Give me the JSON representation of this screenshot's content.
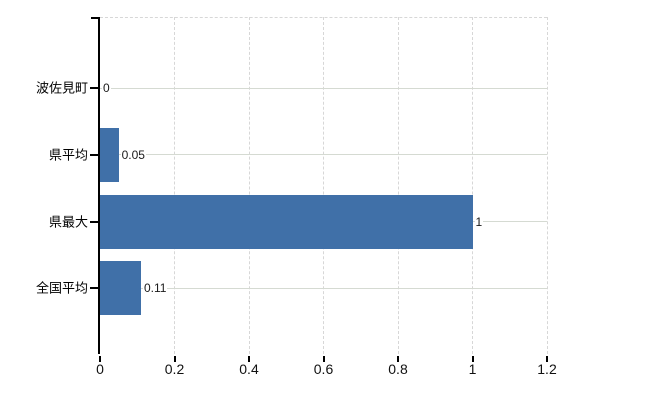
{
  "chart_data": {
    "type": "bar",
    "orientation": "horizontal",
    "title": "",
    "xlabel": "",
    "ylabel": "",
    "categories": [
      "波佐見町",
      "県平均",
      "県最大",
      "全国平均"
    ],
    "values": [
      0,
      0.05,
      1,
      0.11
    ],
    "value_labels": [
      "0",
      "0.05",
      "1",
      "0.11"
    ],
    "xlim": [
      0,
      1.2
    ],
    "x_ticks": [
      0,
      0.2,
      0.4,
      0.6,
      0.8,
      1,
      1.2
    ],
    "x_tick_labels": [
      "0",
      "0.2",
      "0.4",
      "0.6",
      "0.8",
      "1",
      "1.2"
    ],
    "grid": "vertical dashed at each x tick, horizontal solid at each category center, dashed top and right plot borders",
    "legend": "none",
    "bar_color": "#4070a8",
    "axis_color": "#000000",
    "gridline_dashed_color": "#d7d7d7",
    "gridline_solid_color": "#d5dad2",
    "text_color": "#1a1a1a",
    "background_color": "#ffffff"
  }
}
